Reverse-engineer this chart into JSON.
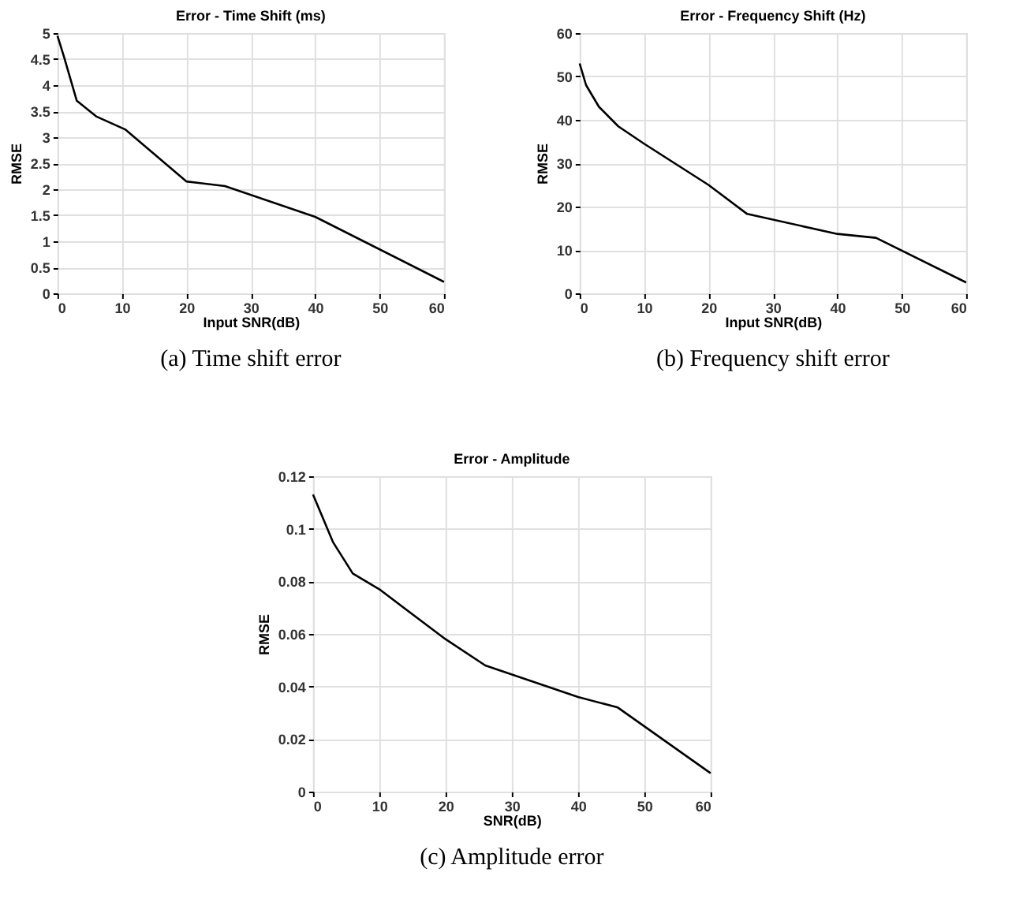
{
  "chart_data": [
    {
      "type": "line",
      "title": "Error - Time Shift (ms)",
      "xlabel": "Input SNR(dB)",
      "ylabel": "RMSE",
      "annotations": [
        "(a) Time shift error"
      ],
      "x": [
        0,
        1,
        3,
        6,
        10.5,
        20,
        26,
        40,
        60
      ],
      "series": [
        {
          "color": "#000000",
          "values": [
            4.95,
            4.55,
            3.7,
            3.4,
            3.15,
            2.15,
            2.06,
            1.47,
            0.22
          ]
        }
      ],
      "xlim": [
        0,
        60
      ],
      "xticks": [
        0,
        10,
        20,
        30,
        40,
        50,
        60
      ],
      "ylim": [
        0,
        5
      ],
      "yticks": [
        0,
        0.5,
        1,
        1.5,
        2,
        2.5,
        3,
        3.5,
        4,
        4.5,
        5
      ],
      "grid": true
    },
    {
      "type": "line",
      "title": "Error - Frequency Shift (Hz)",
      "xlabel": "Input SNR(dB)",
      "ylabel": "RMSE",
      "annotations": [
        "(b) Frequency shift error"
      ],
      "x": [
        0,
        1,
        3,
        6,
        10,
        20,
        26,
        40,
        46,
        60
      ],
      "series": [
        {
          "color": "#000000",
          "values": [
            53,
            48,
            43,
            38.5,
            34.5,
            25,
            18.3,
            13.7,
            12.8,
            2.5
          ]
        }
      ],
      "xlim": [
        0,
        60
      ],
      "xticks": [
        0,
        10,
        20,
        30,
        40,
        50,
        60
      ],
      "ylim": [
        0,
        60
      ],
      "yticks": [
        0,
        10,
        20,
        30,
        40,
        50,
        60
      ],
      "grid": true
    },
    {
      "type": "line",
      "title": "Error - Amplitude",
      "xlabel": "SNR(dB)",
      "ylabel": "RMSE",
      "annotations": [
        "(c) Amplitude error"
      ],
      "x": [
        0,
        3,
        6,
        10,
        20,
        26,
        40,
        46,
        60
      ],
      "series": [
        {
          "color": "#000000",
          "values": [
            0.113,
            0.095,
            0.083,
            0.077,
            0.058,
            0.048,
            0.036,
            0.032,
            0.007
          ]
        }
      ],
      "xlim": [
        0,
        60
      ],
      "xticks": [
        0,
        10,
        20,
        30,
        40,
        50,
        60
      ],
      "ylim": [
        0,
        0.12
      ],
      "yticks": [
        0,
        0.02,
        0.04,
        0.06,
        0.08,
        0.1,
        0.12
      ],
      "grid": true
    }
  ]
}
